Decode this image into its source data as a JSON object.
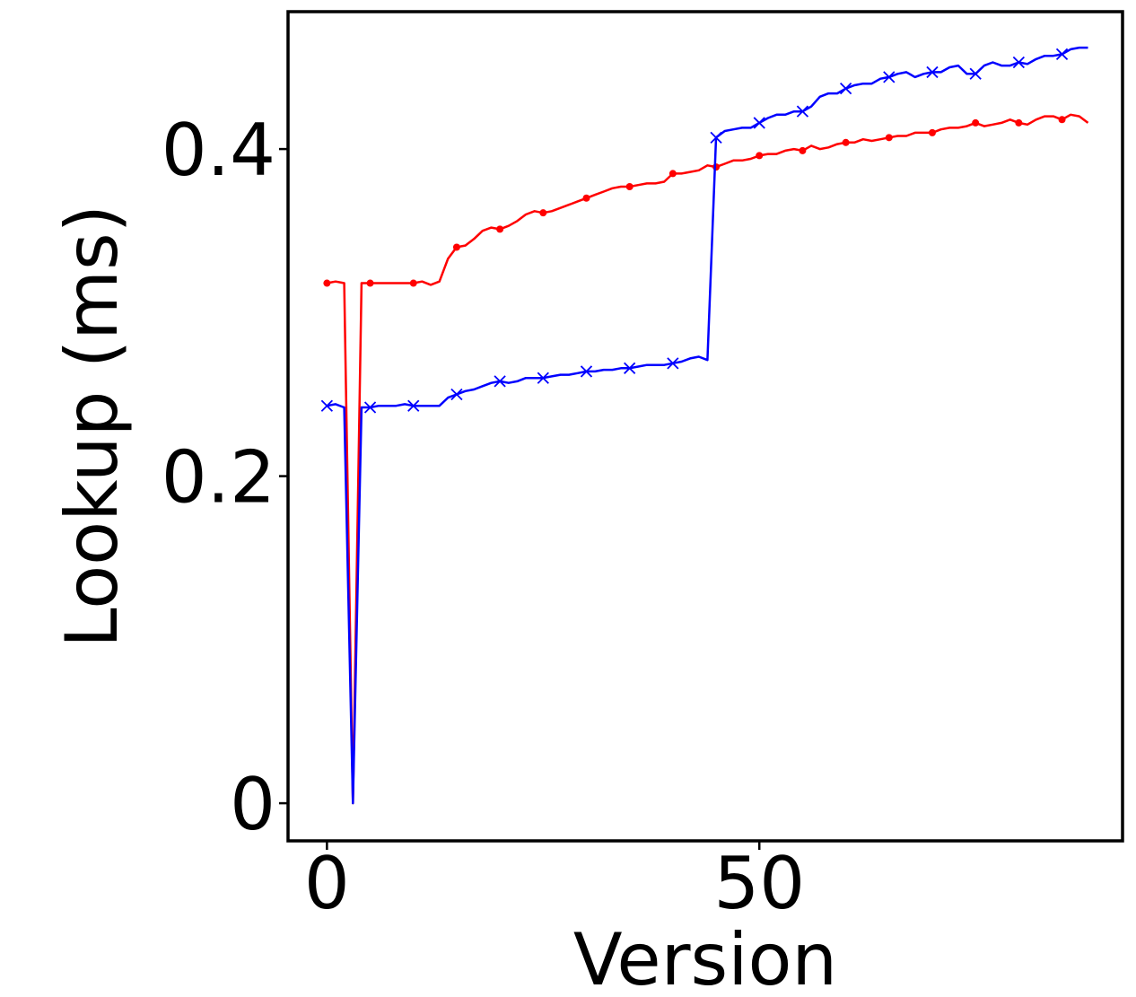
{
  "chart_data": {
    "type": "line",
    "title": "",
    "xlabel": "Version",
    "ylabel": "Lookup (ms)",
    "xlim": [
      -4.5,
      92
    ],
    "ylim": [
      -0.023,
      0.484
    ],
    "x_ticks": [
      {
        "value": 0,
        "label": "0"
      },
      {
        "value": 50,
        "label": "50"
      }
    ],
    "y_ticks": [
      {
        "value": 0,
        "label": "0"
      },
      {
        "value": 0.2,
        "label": "0.2"
      },
      {
        "value": 0.4,
        "label": "0.4"
      }
    ],
    "grid": false,
    "legend": "none",
    "series": [
      {
        "color": "#ff0000",
        "marker": "dot",
        "marker_every": 5,
        "x": [
          0,
          1,
          2,
          3,
          4,
          5,
          6,
          7,
          8,
          9,
          10,
          11,
          12,
          13,
          14,
          15,
          16,
          17,
          18,
          19,
          20,
          21,
          22,
          23,
          24,
          25,
          26,
          27,
          28,
          29,
          30,
          31,
          32,
          33,
          34,
          35,
          36,
          37,
          38,
          39,
          40,
          41,
          42,
          43,
          44,
          45,
          46,
          47,
          48,
          49,
          50,
          51,
          52,
          53,
          54,
          55,
          56,
          57,
          58,
          59,
          60,
          61,
          62,
          63,
          64,
          65,
          66,
          67,
          68,
          69,
          70,
          71,
          72,
          73,
          74,
          75,
          76,
          77,
          78,
          79,
          80,
          81,
          82,
          83,
          84,
          85,
          86,
          87,
          88
        ],
        "y": [
          0.318,
          0.319,
          0.318,
          0.0,
          0.318,
          0.318,
          0.318,
          0.318,
          0.318,
          0.318,
          0.318,
          0.319,
          0.317,
          0.319,
          0.333,
          0.34,
          0.341,
          0.345,
          0.35,
          0.352,
          0.351,
          0.353,
          0.356,
          0.36,
          0.362,
          0.361,
          0.362,
          0.364,
          0.366,
          0.368,
          0.37,
          0.372,
          0.374,
          0.376,
          0.377,
          0.377,
          0.378,
          0.379,
          0.379,
          0.38,
          0.385,
          0.385,
          0.386,
          0.387,
          0.39,
          0.389,
          0.391,
          0.393,
          0.393,
          0.394,
          0.396,
          0.397,
          0.397,
          0.399,
          0.4,
          0.399,
          0.402,
          0.4,
          0.401,
          0.403,
          0.404,
          0.404,
          0.406,
          0.405,
          0.406,
          0.407,
          0.408,
          0.408,
          0.41,
          0.41,
          0.41,
          0.412,
          0.413,
          0.413,
          0.414,
          0.416,
          0.414,
          0.415,
          0.416,
          0.418,
          0.416,
          0.415,
          0.418,
          0.42,
          0.42,
          0.418,
          0.421,
          0.42,
          0.416
        ]
      },
      {
        "color": "#0000ff",
        "marker": "x",
        "marker_every": 5,
        "x": [
          0,
          1,
          2,
          3,
          4,
          5,
          6,
          7,
          8,
          9,
          10,
          11,
          12,
          13,
          14,
          15,
          16,
          17,
          18,
          19,
          20,
          21,
          22,
          23,
          24,
          25,
          26,
          27,
          28,
          29,
          30,
          31,
          32,
          33,
          34,
          35,
          36,
          37,
          38,
          39,
          40,
          41,
          42,
          43,
          44,
          45,
          46,
          47,
          48,
          49,
          50,
          51,
          52,
          53,
          54,
          55,
          56,
          57,
          58,
          59,
          60,
          61,
          62,
          63,
          64,
          65,
          66,
          67,
          68,
          69,
          70,
          71,
          72,
          73,
          74,
          75,
          76,
          77,
          78,
          79,
          80,
          81,
          82,
          83,
          84,
          85,
          86,
          87,
          88
        ],
        "y": [
          0.243,
          0.244,
          0.242,
          0.0,
          0.242,
          0.242,
          0.243,
          0.243,
          0.243,
          0.244,
          0.243,
          0.243,
          0.243,
          0.243,
          0.248,
          0.25,
          0.252,
          0.253,
          0.255,
          0.257,
          0.258,
          0.257,
          0.258,
          0.26,
          0.26,
          0.26,
          0.261,
          0.262,
          0.262,
          0.263,
          0.264,
          0.264,
          0.265,
          0.265,
          0.266,
          0.266,
          0.267,
          0.268,
          0.268,
          0.268,
          0.269,
          0.27,
          0.272,
          0.273,
          0.271,
          0.407,
          0.411,
          0.412,
          0.413,
          0.413,
          0.416,
          0.419,
          0.421,
          0.421,
          0.423,
          0.423,
          0.426,
          0.432,
          0.434,
          0.434,
          0.437,
          0.439,
          0.44,
          0.44,
          0.443,
          0.444,
          0.446,
          0.447,
          0.444,
          0.446,
          0.447,
          0.447,
          0.45,
          0.451,
          0.446,
          0.446,
          0.451,
          0.453,
          0.451,
          0.451,
          0.453,
          0.452,
          0.455,
          0.457,
          0.457,
          0.458,
          0.461,
          0.462,
          0.462
        ]
      }
    ]
  }
}
